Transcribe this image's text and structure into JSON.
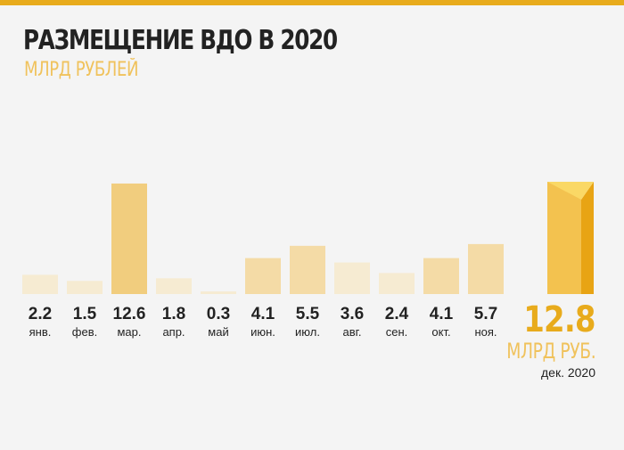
{
  "header": {
    "title": "РАЗМЕЩЕНИЕ ВДО В 2020",
    "subtitle": "МЛРД РУБЛЕЙ"
  },
  "highlight": {
    "value": "12.8",
    "unit": "МЛРД РУБ.",
    "period": "дек. 2020"
  },
  "colors": {
    "accent": "#e8ab1c",
    "bar_light": "#f6ebd2",
    "bar_medium": "#f4dba6",
    "bar_strong": "#f1cd7e",
    "hl_front": "#f3c24f",
    "hl_side": "#e8a414",
    "hl_top": "#fad865"
  },
  "chart_data": {
    "type": "bar",
    "categories": [
      "янв.",
      "фев.",
      "мар.",
      "апр.",
      "май",
      "июн.",
      "июл.",
      "авг.",
      "сен.",
      "окт.",
      "ноя.",
      "дек. 2020"
    ],
    "values": [
      2.2,
      1.5,
      12.6,
      1.8,
      0.3,
      4.1,
      5.5,
      3.6,
      2.4,
      4.1,
      5.7,
      12.8
    ],
    "value_labels": [
      "2.2",
      "1.5",
      "12.6",
      "1.8",
      "0.3",
      "4.1",
      "5.5",
      "3.6",
      "2.4",
      "4.1",
      "5.7",
      "12.8"
    ],
    "title": "РАЗМЕЩЕНИЕ ВДО В 2020",
    "ylabel": "МЛРД РУБЛЕЙ",
    "ylim": [
      0,
      12.8
    ],
    "grid": false,
    "highlighted_category": "дек. 2020"
  }
}
